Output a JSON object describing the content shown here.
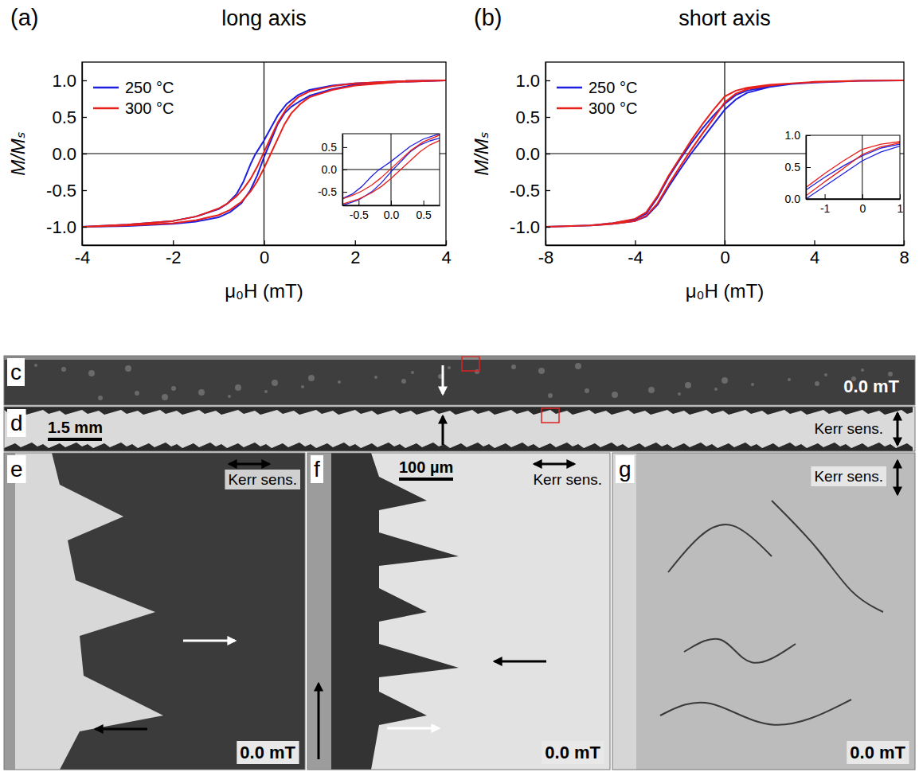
{
  "chart_data": [
    {
      "type": "line",
      "panel": "(a)",
      "title": "long axis",
      "x_label": "μ₀H (mT)",
      "y_label": "M/Mₛ",
      "xlim": [
        -4,
        4
      ],
      "xticks": [
        -4,
        -2,
        0,
        2,
        4
      ],
      "ylim": [
        -1.25,
        1.25
      ],
      "yticks": [
        {
          "value": -1,
          "label": "-1.0"
        },
        {
          "value": -0.5,
          "label": "-0.5"
        },
        {
          "value": 0,
          "label": "0.0"
        },
        {
          "value": 0.5,
          "label": "0.5"
        },
        {
          "value": 1,
          "label": "1.0"
        }
      ],
      "hlines": [
        0
      ],
      "vlines": [
        0
      ],
      "legend": "upper left",
      "series": [
        {
          "name": "250 °C",
          "color": "#1f1fe0",
          "x": [
            4,
            3,
            2,
            1.5,
            1,
            0.75,
            0.5,
            0.3,
            0.15,
            0,
            -0.1,
            -0.2,
            -0.3,
            -0.45,
            -0.6,
            -0.8,
            -1,
            -1.5,
            -2,
            -3,
            -4,
            -4,
            -3,
            -2,
            -1.5,
            -1,
            -0.75,
            -0.5,
            -0.3,
            -0.15,
            0,
            0.1,
            0.2,
            0.3,
            0.45,
            0.6,
            0.8,
            1,
            1.5,
            2,
            3,
            4
          ],
          "values": [
            1.0,
            0.99,
            0.96,
            0.93,
            0.87,
            0.8,
            0.68,
            0.52,
            0.35,
            0.18,
            0.08,
            -0.02,
            -0.15,
            -0.38,
            -0.55,
            -0.68,
            -0.76,
            -0.86,
            -0.92,
            -0.97,
            -1.0,
            -1.0,
            -0.99,
            -0.96,
            -0.93,
            -0.87,
            -0.8,
            -0.68,
            -0.5,
            -0.3,
            -0.05,
            0.1,
            0.25,
            0.4,
            0.55,
            0.64,
            0.72,
            0.79,
            0.88,
            0.94,
            0.98,
            1.0
          ]
        },
        {
          "name": "300 °C",
          "color": "#e8201c",
          "x": [
            4,
            3,
            2,
            1.5,
            1,
            0.75,
            0.5,
            0.3,
            0.15,
            0,
            -0.15,
            -0.3,
            -0.45,
            -0.6,
            -0.8,
            -1,
            -1.5,
            -2,
            -3,
            -4,
            -4,
            -3,
            -2,
            -1.5,
            -1,
            -0.75,
            -0.5,
            -0.3,
            -0.15,
            0,
            0.15,
            0.3,
            0.45,
            0.6,
            0.8,
            1,
            1.5,
            2,
            3,
            4
          ],
          "values": [
            1.0,
            0.99,
            0.96,
            0.92,
            0.85,
            0.77,
            0.62,
            0.42,
            0.22,
            0.02,
            -0.18,
            -0.35,
            -0.48,
            -0.58,
            -0.68,
            -0.75,
            -0.86,
            -0.92,
            -0.97,
            -1.0,
            -1.0,
            -0.98,
            -0.95,
            -0.91,
            -0.84,
            -0.77,
            -0.66,
            -0.52,
            -0.38,
            -0.2,
            0.0,
            0.2,
            0.4,
            0.55,
            0.68,
            0.77,
            0.87,
            0.93,
            0.98,
            1.0
          ]
        }
      ],
      "inset": {
        "xlim": [
          -0.75,
          0.75
        ],
        "xticks": [
          -0.5,
          {
            "value": 0,
            "label": "0.0"
          },
          0.5
        ],
        "ylim": [
          -0.8,
          0.8
        ],
        "yticks": [
          -0.5,
          {
            "value": 0,
            "label": "0.0"
          },
          0.5
        ]
      }
    },
    {
      "type": "line",
      "panel": "(b)",
      "title": "short axis",
      "x_label": "μ₀H (mT)",
      "y_label": "M/Mₛ",
      "xlim": [
        -8,
        8
      ],
      "xticks": [
        -8,
        -4,
        0,
        4,
        8
      ],
      "ylim": [
        -1.25,
        1.25
      ],
      "yticks": [
        {
          "value": -1,
          "label": "-1.0"
        },
        {
          "value": -0.5,
          "label": "-0.5"
        },
        {
          "value": 0,
          "label": "0.0"
        },
        {
          "value": 0.5,
          "label": "0.5"
        },
        {
          "value": 1,
          "label": "1.0"
        }
      ],
      "hlines": [
        0
      ],
      "vlines": [
        0
      ],
      "legend": "upper left",
      "series": [
        {
          "name": "250 °C",
          "color": "#1f1fe0",
          "x": [
            8,
            6,
            4,
            3,
            2,
            1,
            0.5,
            0,
            -0.5,
            -1,
            -1.5,
            -2,
            -2.5,
            -3,
            -3.5,
            -4,
            -5,
            -6,
            -8,
            -8,
            -6,
            -5,
            -4,
            -3.5,
            -3,
            -2.5,
            -2,
            -1.5,
            -1,
            -0.5,
            0,
            0.5,
            1,
            2,
            3,
            4,
            6,
            8
          ],
          "values": [
            1.0,
            0.995,
            0.97,
            0.95,
            0.92,
            0.86,
            0.8,
            0.68,
            0.52,
            0.34,
            0.14,
            -0.08,
            -0.32,
            -0.6,
            -0.82,
            -0.9,
            -0.95,
            -0.98,
            -1.0,
            -1.0,
            -0.98,
            -0.96,
            -0.92,
            -0.86,
            -0.7,
            -0.45,
            -0.22,
            0.0,
            0.2,
            0.4,
            0.6,
            0.74,
            0.83,
            0.91,
            0.95,
            0.97,
            0.995,
            1.0
          ]
        },
        {
          "name": "300 °C",
          "color": "#e8201c",
          "x": [
            8,
            6,
            4,
            3,
            2,
            1,
            0.5,
            0,
            -0.5,
            -1,
            -1.5,
            -2,
            -2.5,
            -3,
            -3.5,
            -4,
            -5,
            -6,
            -8,
            -8,
            -6,
            -5,
            -4,
            -3.5,
            -3,
            -2.5,
            -2,
            -1.5,
            -1,
            -0.5,
            0,
            0.5,
            1,
            2,
            3,
            4,
            6,
            8
          ],
          "values": [
            1.0,
            0.995,
            0.975,
            0.96,
            0.94,
            0.9,
            0.86,
            0.78,
            0.6,
            0.4,
            0.18,
            -0.06,
            -0.3,
            -0.58,
            -0.8,
            -0.89,
            -0.95,
            -0.98,
            -1.0,
            -1.0,
            -0.98,
            -0.96,
            -0.92,
            -0.85,
            -0.68,
            -0.42,
            -0.18,
            0.05,
            0.27,
            0.48,
            0.7,
            0.82,
            0.88,
            0.93,
            0.96,
            0.98,
            0.995,
            1.0
          ]
        }
      ],
      "inset": {
        "xlim": [
          -1.5,
          1
        ],
        "xticks": [
          -1,
          0,
          1
        ],
        "ylim": [
          0,
          1
        ],
        "yticks": [
          {
            "value": 0,
            "label": "0.0"
          },
          {
            "value": 0.5,
            "label": "0.5"
          },
          {
            "value": 1,
            "label": "1.0"
          }
        ]
      }
    }
  ],
  "images": {
    "panels": [
      {
        "letter": "c",
        "labels": [
          "0.0 mT"
        ]
      },
      {
        "letter": "d",
        "scale_bar": "1.5 mm",
        "labels": [
          "Kerr sens."
        ]
      },
      {
        "letter": "e",
        "labels": [
          "Kerr sens.",
          "0.0 mT"
        ]
      },
      {
        "letter": "f",
        "scale_bar": "100 µm",
        "labels": [
          "Kerr sens.",
          "0.0 mT"
        ]
      },
      {
        "letter": "g",
        "labels": [
          "Kerr sens.",
          "0.0 mT"
        ]
      }
    ]
  }
}
